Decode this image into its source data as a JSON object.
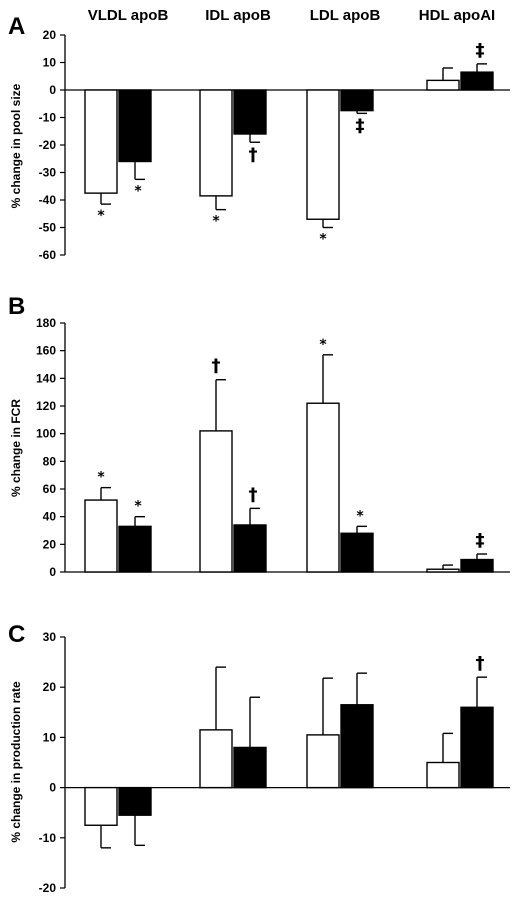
{
  "categories": [
    "VLDL apoB",
    "IDL apoB",
    "LDL apoB",
    "HDL apoAI"
  ],
  "chart_data": [
    {
      "type": "bar",
      "panel": "A",
      "title": "",
      "ylabel": "% change in pool size",
      "ylim": [
        -60,
        20
      ],
      "yticks": [
        20,
        10,
        0,
        -10,
        -20,
        -30,
        -40,
        -50,
        -60
      ],
      "categories": [
        "VLDL apoB",
        "IDL apoB",
        "LDL apoB",
        "HDL apoAI"
      ],
      "series": [
        {
          "fill": "#ffffff",
          "values": [
            -37.5,
            -38.5,
            -47,
            3.5
          ],
          "errors": [
            4,
            5,
            3,
            4.5
          ],
          "marks": [
            "*",
            "*",
            "*",
            ""
          ]
        },
        {
          "fill": "#000000",
          "values": [
            -26,
            -16,
            -7.5,
            6.5
          ],
          "errors": [
            6.5,
            3,
            1,
            3
          ],
          "marks": [
            "*",
            "†",
            "‡",
            "‡"
          ]
        }
      ]
    },
    {
      "type": "bar",
      "panel": "B",
      "title": "",
      "ylabel": "% change in FCR",
      "ylim": [
        0,
        180
      ],
      "yticks": [
        180,
        160,
        140,
        120,
        100,
        80,
        60,
        40,
        20,
        0
      ],
      "categories": [
        "VLDL apoB",
        "IDL apoB",
        "LDL apoB",
        "HDL apoAI"
      ],
      "series": [
        {
          "fill": "#ffffff",
          "values": [
            52,
            102,
            122,
            2
          ],
          "errors": [
            9,
            37,
            35,
            3
          ],
          "marks": [
            "*",
            "†",
            "*",
            ""
          ]
        },
        {
          "fill": "#000000",
          "values": [
            33,
            34,
            28,
            9
          ],
          "errors": [
            7,
            12,
            5,
            4
          ],
          "marks": [
            "*",
            "†",
            "*",
            "‡"
          ]
        }
      ]
    },
    {
      "type": "bar",
      "panel": "C",
      "title": "",
      "ylabel": "% change in production rate",
      "ylim": [
        -20,
        30
      ],
      "yticks": [
        30,
        20,
        10,
        0,
        -10,
        -20
      ],
      "categories": [
        "VLDL apoB",
        "IDL apoB",
        "LDL apoB",
        "HDL apoAI"
      ],
      "series": [
        {
          "fill": "#ffffff",
          "values": [
            -7.5,
            11.5,
            10.5,
            5
          ],
          "errors": [
            4.5,
            12.5,
            11.3,
            5.8
          ],
          "marks": [
            "",
            "",
            "",
            ""
          ]
        },
        {
          "fill": "#000000",
          "values": [
            -5.5,
            8,
            16.5,
            16
          ],
          "errors": [
            6,
            10,
            6.3,
            6
          ],
          "marks": [
            "",
            "",
            "",
            "†"
          ]
        }
      ]
    }
  ]
}
